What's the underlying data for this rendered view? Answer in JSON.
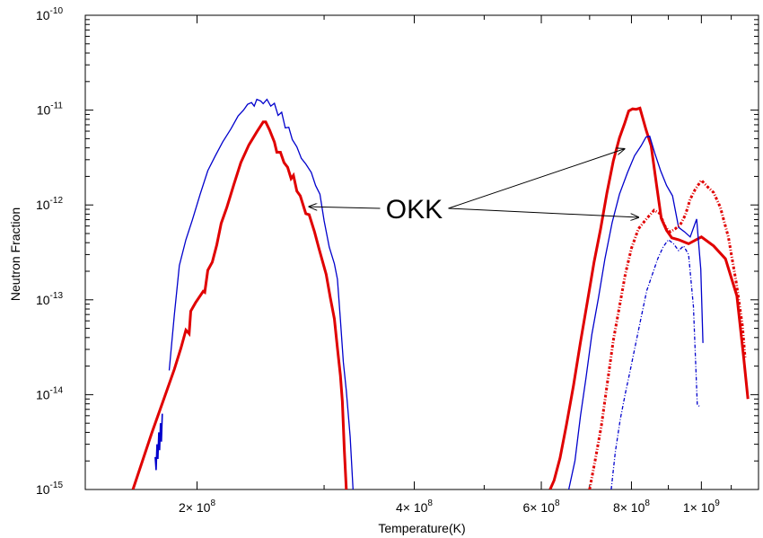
{
  "chart_data": {
    "type": "line",
    "xlabel": "Temperature(K)",
    "ylabel": "Neutron Fraction",
    "xscale": "log",
    "yscale": "log",
    "xlim": [
      140000000,
      1200000000
    ],
    "ylim": [
      1e-15,
      1e-10
    ],
    "x_ticks": [
      {
        "value": 200000000,
        "mantissa": "2",
        "exp": "8"
      },
      {
        "value": 400000000,
        "mantissa": "4",
        "exp": "8"
      },
      {
        "value": 600000000,
        "mantissa": "6",
        "exp": "8"
      },
      {
        "value": 800000000,
        "mantissa": "8",
        "exp": "8"
      },
      {
        "value": 1000000000,
        "mantissa": "1",
        "exp": "9"
      }
    ],
    "y_ticks": [
      {
        "value": 1e-10,
        "base": "10",
        "exp": "-10"
      },
      {
        "value": 1e-11,
        "base": "10",
        "exp": "-11"
      },
      {
        "value": 1e-12,
        "base": "10",
        "exp": "-12"
      },
      {
        "value": 1e-13,
        "base": "10",
        "exp": "-13"
      },
      {
        "value": 1e-14,
        "base": "10",
        "exp": "-14"
      },
      {
        "value": 1e-15,
        "base": "10",
        "exp": "-15"
      }
    ],
    "grid": false,
    "series": [
      {
        "color": "#e00000",
        "width": 3,
        "dash": "",
        "points": [
          [
            163000000,
            1e-15
          ],
          [
            173000000,
            3.9e-15
          ],
          [
            180000000,
            9.1e-15
          ],
          [
            186000000,
            1.85e-14
          ],
          [
            190000000,
            3.1e-14
          ],
          [
            193000000,
            4.8e-14
          ],
          [
            195000000,
            4.4e-14
          ],
          [
            196000000,
            7.6e-14
          ],
          [
            199000000,
            9.3e-14
          ],
          [
            204000000,
            1.23e-13
          ],
          [
            205000000,
            1.2e-13
          ],
          [
            207000000,
            2.05e-13
          ],
          [
            210000000,
            2.5e-13
          ],
          [
            213000000,
            3.8e-13
          ],
          [
            216000000,
            6.4e-13
          ],
          [
            220000000,
            9.5e-13
          ],
          [
            225000000,
            1.65e-12
          ],
          [
            230000000,
            2.8e-12
          ],
          [
            236000000,
            4.3e-12
          ],
          [
            242000000,
            5.9e-12
          ],
          [
            247000000,
            7.5e-12
          ],
          [
            249000000,
            7.5e-12
          ],
          [
            252000000,
            6.2e-12
          ],
          [
            256000000,
            4.6e-12
          ],
          [
            258000000,
            3.6e-12
          ],
          [
            261000000,
            3.6e-12
          ],
          [
            264000000,
            2.8e-12
          ],
          [
            267000000,
            2.5e-12
          ],
          [
            270000000,
            1.9e-12
          ],
          [
            272000000,
            2.05e-12
          ],
          [
            275000000,
            1.4e-12
          ],
          [
            278000000,
            1.25e-12
          ],
          [
            283000000,
            8.1e-13
          ],
          [
            286000000,
            7.9e-13
          ],
          [
            291000000,
            5.2e-13
          ],
          [
            295000000,
            3.5e-13
          ],
          [
            302000000,
            1.85e-13
          ],
          [
            306000000,
            1.05e-13
          ],
          [
            310000000,
            6.3e-14
          ],
          [
            313000000,
            3.1e-14
          ],
          [
            316000000,
            1.6e-14
          ],
          [
            318000000,
            8.5e-15
          ],
          [
            320000000,
            2.6e-15
          ],
          [
            322000000,
            1e-15
          ]
        ]
      },
      {
        "color": "#0000cc",
        "width": 1.3,
        "dash": "",
        "points": [
          [
            183000000,
            1.8e-14
          ],
          [
            186000000,
            6.9e-14
          ],
          [
            189000000,
            2.3e-13
          ],
          [
            193000000,
            4.3e-13
          ],
          [
            197000000,
            6.9e-13
          ],
          [
            202000000,
            1.3e-12
          ],
          [
            207000000,
            2.3e-12
          ],
          [
            212000000,
            3.3e-12
          ],
          [
            217000000,
            4.6e-12
          ],
          [
            223000000,
            6.4e-12
          ],
          [
            228000000,
            8.7e-12
          ],
          [
            232000000,
            1e-11
          ],
          [
            235000000,
            1.15e-11
          ],
          [
            238000000,
            1.2e-11
          ],
          [
            240000000,
            1.1e-11
          ],
          [
            242000000,
            1.3e-11
          ],
          [
            245000000,
            1.25e-11
          ],
          [
            247000000,
            1.17e-11
          ],
          [
            250000000,
            1.3e-11
          ],
          [
            253000000,
            1.1e-11
          ],
          [
            256000000,
            1.18e-11
          ],
          [
            259000000,
            8.8e-12
          ],
          [
            262000000,
            9.5e-12
          ],
          [
            265000000,
            6.5e-12
          ],
          [
            268000000,
            6.6e-12
          ],
          [
            271000000,
            4.9e-12
          ],
          [
            275000000,
            4.1e-12
          ],
          [
            279000000,
            3.1e-12
          ],
          [
            283000000,
            2.7e-12
          ],
          [
            288000000,
            2.2e-12
          ],
          [
            292000000,
            1.6e-12
          ],
          [
            296000000,
            1.3e-12
          ],
          [
            300000000,
            6.8e-13
          ],
          [
            305000000,
            3.6e-13
          ],
          [
            310000000,
            2.4e-13
          ],
          [
            313000000,
            1.65e-13
          ],
          [
            316000000,
            6.2e-14
          ],
          [
            319000000,
            2.2e-14
          ],
          [
            322000000,
            1.1e-14
          ],
          [
            326000000,
            3.6e-15
          ],
          [
            329000000,
            1e-15
          ]
        ]
      },
      {
        "color": "#0000cc",
        "width": 1.6,
        "dash": "",
        "points": [
          [
            179000000,
            6.3e-15
          ],
          [
            178500000,
            3.2e-15
          ],
          [
            178000000,
            5e-15
          ],
          [
            177500000,
            2.6e-15
          ],
          [
            177000000,
            4e-15
          ],
          [
            176500000,
            2.1e-15
          ],
          [
            176000000,
            3e-15
          ],
          [
            175500000,
            1.6e-15
          ],
          [
            175000000,
            2.2e-15
          ]
        ]
      },
      {
        "color": "#e00000",
        "width": 3,
        "dash": "",
        "points": [
          [
            617000000,
            1e-15
          ],
          [
            625000000,
            1.25e-15
          ],
          [
            637000000,
            2.15e-15
          ],
          [
            650000000,
            4.8e-15
          ],
          [
            665000000,
            1.25e-14
          ],
          [
            680000000,
            3.6e-14
          ],
          [
            695000000,
            9.5e-14
          ],
          [
            710000000,
            2.5e-13
          ],
          [
            725000000,
            5.6e-13
          ],
          [
            740000000,
            1.35e-12
          ],
          [
            755000000,
            2.9e-12
          ],
          [
            770000000,
            5.1e-12
          ],
          [
            783000000,
            7.3e-12
          ],
          [
            793000000,
            9.8e-12
          ],
          [
            803000000,
            1.03e-11
          ],
          [
            812000000,
            1.02e-11
          ],
          [
            822000000,
            1.05e-11
          ],
          [
            838000000,
            6.2e-12
          ],
          [
            852000000,
            4.2e-12
          ],
          [
            867000000,
            1.6e-12
          ],
          [
            880000000,
            7.2e-13
          ],
          [
            895000000,
            5.4e-13
          ],
          [
            910000000,
            4.5e-13
          ],
          [
            930000000,
            4.3e-13
          ],
          [
            960000000,
            3.9e-13
          ],
          [
            1000000000,
            4.6e-13
          ],
          [
            1040000000,
            3.7e-13
          ],
          [
            1080000000,
            2.7e-13
          ],
          [
            1120000000,
            1.1e-13
          ],
          [
            1145000000,
            2.4e-14
          ],
          [
            1160000000,
            9e-15
          ]
        ]
      },
      {
        "color": "#0000cc",
        "width": 1.3,
        "dash": "",
        "points": [
          [
            655000000,
            1e-15
          ],
          [
            668000000,
            2e-15
          ],
          [
            680000000,
            6e-15
          ],
          [
            692000000,
            1.5e-14
          ],
          [
            705000000,
            4.3e-14
          ],
          [
            720000000,
            1.05e-13
          ],
          [
            735000000,
            2.7e-13
          ],
          [
            752000000,
            6.5e-13
          ],
          [
            770000000,
            1.3e-12
          ],
          [
            790000000,
            2.2e-12
          ],
          [
            808000000,
            3.3e-12
          ],
          [
            825000000,
            4.2e-12
          ],
          [
            838000000,
            5.2e-12
          ],
          [
            848000000,
            5.3e-12
          ],
          [
            862000000,
            3.5e-12
          ],
          [
            878000000,
            2.3e-12
          ],
          [
            895000000,
            1.6e-12
          ],
          [
            912000000,
            1.25e-12
          ],
          [
            930000000,
            5.8e-13
          ],
          [
            948000000,
            5.2e-13
          ],
          [
            965000000,
            4.6e-13
          ],
          [
            985000000,
            7.1e-13
          ],
          [
            998000000,
            2.1e-13
          ],
          [
            1005000000,
            3.5e-14
          ]
        ]
      },
      {
        "color": "#e00000",
        "width": 3,
        "dash": "3,2,1,2",
        "points": [
          [
            700000000,
            1e-15
          ],
          [
            713000000,
            2.1e-15
          ],
          [
            727000000,
            4.8e-15
          ],
          [
            740000000,
            1.25e-14
          ],
          [
            755000000,
            3.7e-14
          ],
          [
            770000000,
            8.5e-14
          ],
          [
            785000000,
            1.9e-13
          ],
          [
            800000000,
            3.5e-13
          ],
          [
            818000000,
            5.6e-13
          ],
          [
            840000000,
            7.2e-13
          ],
          [
            860000000,
            8.8e-13
          ],
          [
            875000000,
            8.2e-13
          ],
          [
            892000000,
            5.8e-13
          ],
          [
            905000000,
            5.2e-13
          ],
          [
            920000000,
            5.6e-13
          ],
          [
            935000000,
            6.2e-13
          ],
          [
            950000000,
            7.8e-13
          ],
          [
            965000000,
            1.15e-12
          ],
          [
            980000000,
            1.45e-12
          ],
          [
            1000000000,
            1.82e-12
          ],
          [
            1020000000,
            1.55e-12
          ],
          [
            1040000000,
            1.35e-12
          ],
          [
            1062000000,
            9.5e-13
          ],
          [
            1090000000,
            4.6e-13
          ],
          [
            1118000000,
            1.5e-13
          ],
          [
            1140000000,
            5.3e-14
          ],
          [
            1150000000,
            2.4e-14
          ]
        ]
      },
      {
        "color": "#0000cc",
        "width": 1.3,
        "dash": "4,2,1,2",
        "points": [
          [
            750000000,
            1e-15
          ],
          [
            760000000,
            2.5e-15
          ],
          [
            772000000,
            5.5e-15
          ],
          [
            785000000,
            1.05e-14
          ],
          [
            797000000,
            1.8e-14
          ],
          [
            810000000,
            3.3e-14
          ],
          [
            825000000,
            6.5e-14
          ],
          [
            840000000,
            1.25e-13
          ],
          [
            855000000,
            1.85e-13
          ],
          [
            870000000,
            2.7e-13
          ],
          [
            885000000,
            3.6e-13
          ],
          [
            900000000,
            4.3e-13
          ],
          [
            915000000,
            3.9e-13
          ],
          [
            930000000,
            3.3e-13
          ],
          [
            945000000,
            3.7e-13
          ],
          [
            960000000,
            3e-13
          ],
          [
            975000000,
            8.5e-14
          ],
          [
            987000000,
            7.8e-15
          ],
          [
            995000000,
            7.5e-15
          ]
        ]
      }
    ],
    "annotations": [
      {
        "text": "OKK",
        "x": 400000000,
        "y": 9.2e-13,
        "arrows": [
          {
            "x": 286000000,
            "y": 9.6e-13
          },
          {
            "x": 782000000,
            "y": 3.9e-12
          },
          {
            "x": 818000000,
            "y": 7.4e-13
          }
        ]
      }
    ]
  }
}
